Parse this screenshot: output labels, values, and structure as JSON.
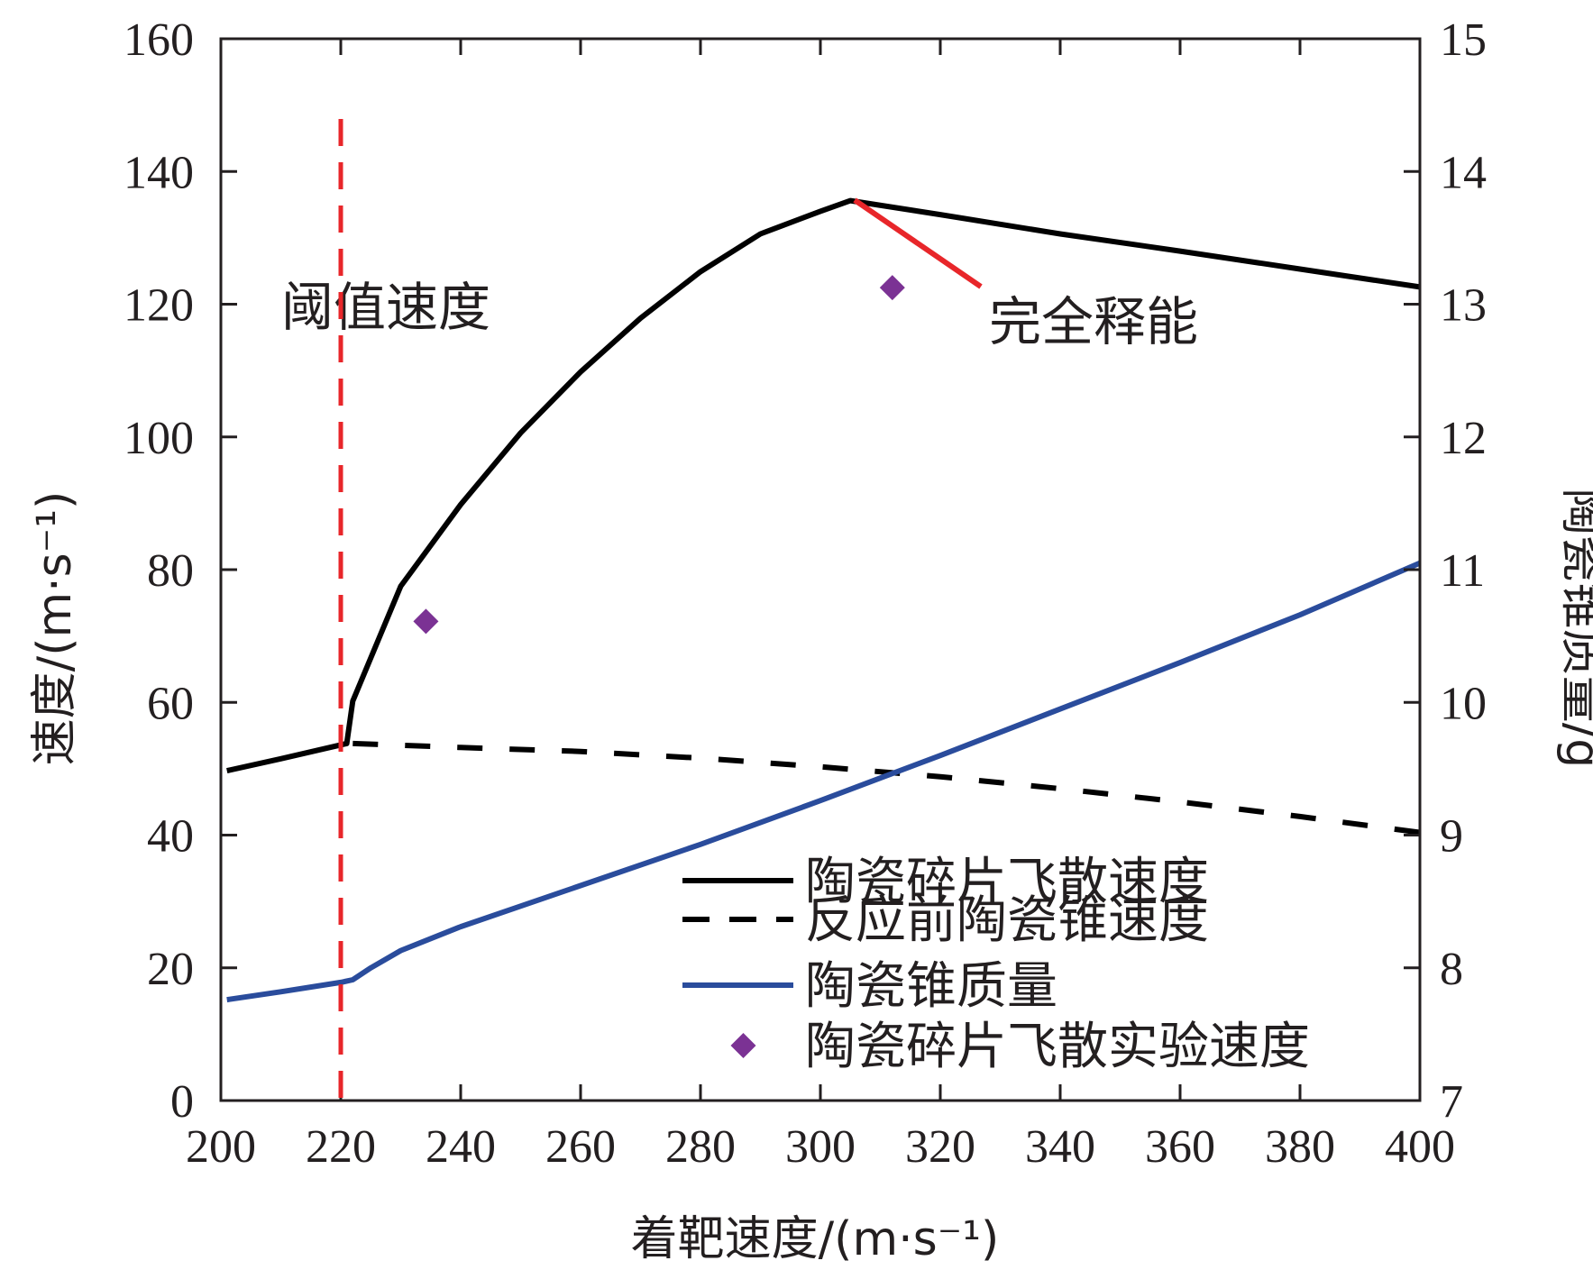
{
  "chart_data": {
    "type": "line",
    "xlabel": "着靶速度/(m·s⁻¹)",
    "ylabel": "速度/(m·s⁻¹)",
    "y2label": "陶瓷锥质量/g",
    "xlim": [
      200,
      400
    ],
    "ylim": [
      0,
      160
    ],
    "y2lim": [
      7,
      15
    ],
    "x_ticks": [
      200,
      220,
      240,
      260,
      280,
      300,
      320,
      340,
      360,
      380,
      400
    ],
    "y_ticks": [
      0,
      20,
      40,
      60,
      80,
      100,
      120,
      140,
      160
    ],
    "y2_ticks": [
      7,
      8,
      9,
      10,
      11,
      12,
      13,
      14,
      15
    ],
    "grid": false,
    "legend_position": "bottom-right",
    "series": [
      {
        "name": "陶瓷碎片飞散速度",
        "axis": "left",
        "style": "solid",
        "color": "#000000",
        "x": [
          201,
          210,
          221,
          222,
          230,
          240,
          250,
          260,
          270,
          280,
          290,
          300,
          305,
          320,
          340,
          360,
          380,
          400
        ],
        "y": [
          49.7,
          51.5,
          53.8,
          60.2,
          77.5,
          89.8,
          100.6,
          109.8,
          117.9,
          124.9,
          130.6,
          134.0,
          135.6,
          133.5,
          130.6,
          128.0,
          125.3,
          122.6
        ]
      },
      {
        "name": "反应前陶瓷锥速度",
        "axis": "left",
        "style": "dashed",
        "color": "#000000",
        "x": [
          222,
          240,
          260,
          280,
          300,
          320,
          340,
          360,
          380,
          400
        ],
        "y": [
          53.8,
          53.2,
          52.6,
          51.6,
          50.3,
          48.8,
          47.0,
          45.0,
          42.8,
          40.4
        ]
      },
      {
        "name": "陶瓷锥质量",
        "axis": "right",
        "style": "solid",
        "color": "#2a4c9c",
        "x": [
          201,
          210,
          220,
          222,
          225,
          230,
          240,
          260,
          280,
          300,
          320,
          340,
          360,
          380,
          400
        ],
        "y": [
          7.76,
          7.82,
          7.89,
          7.91,
          8.0,
          8.13,
          8.31,
          8.62,
          8.93,
          9.26,
          9.6,
          9.95,
          10.3,
          10.66,
          11.05
        ]
      },
      {
        "name": "陶瓷碎片飞散实验速度",
        "axis": "left",
        "style": "marker",
        "marker": "diamond",
        "color": "#7b3294",
        "x": [
          234.2,
          312
        ],
        "y": [
          72.2,
          122.5
        ]
      }
    ],
    "annotations": [
      {
        "text": "阈值速度",
        "type": "vertical-dashed-line",
        "x": 220,
        "color": "#e8262a"
      },
      {
        "text": "完全释能",
        "type": "leader-line",
        "color": "#e8262a"
      }
    ]
  }
}
